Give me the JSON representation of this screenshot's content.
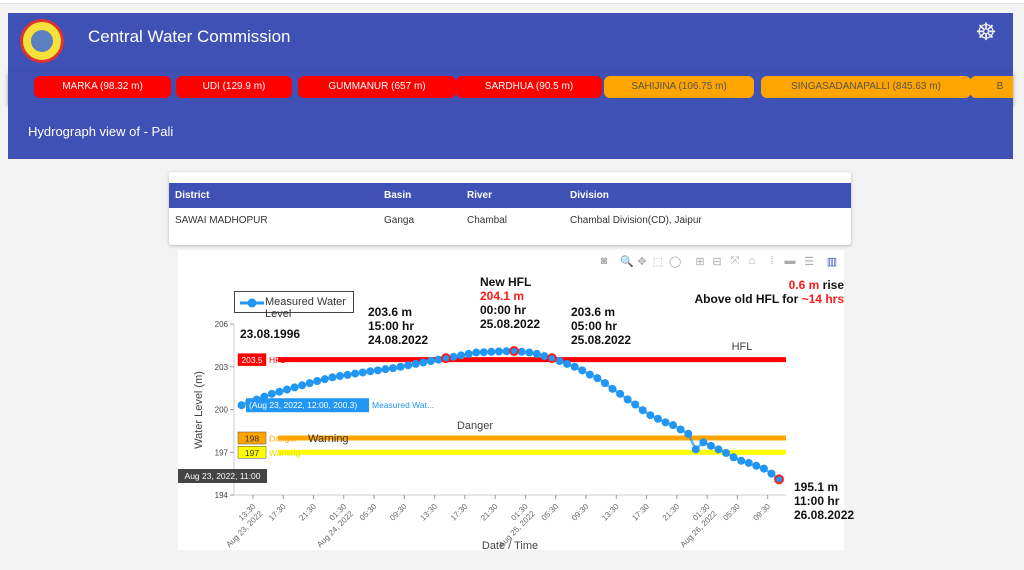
{
  "header": {
    "title": "Central Water Commission",
    "logo": "cwc-logo",
    "emblem": "india-emblem-icon"
  },
  "ticker": [
    {
      "label": "MARKA (98.32 m)",
      "status": "red"
    },
    {
      "label": "UDI (129.9 m)",
      "status": "red"
    },
    {
      "label": "GUMMANUR (657 m)",
      "status": "red"
    },
    {
      "label": "SARDHUA (90.5 m)",
      "status": "red"
    },
    {
      "label": "SAHIJINA (106.75 m)",
      "status": "orange"
    },
    {
      "label": "SINGASADANAPALLI (845.63 m)",
      "status": "orange"
    },
    {
      "label": "B",
      "status": "orange"
    }
  ],
  "subheader": {
    "title": "Hydrograph view of - Pali"
  },
  "table": {
    "headers": [
      "District",
      "Basin",
      "River",
      "Division"
    ],
    "row": [
      "SAWAI MADHOPUR",
      "Ganga",
      "Chambal",
      "Chambal Division(CD), Jaipur"
    ]
  },
  "toolbar": [
    "camera-icon",
    "zoom-icon",
    "pan-icon",
    "box-select-icon",
    "lasso-icon",
    "zoom-in-icon",
    "zoom-out-icon",
    "autoscale-icon",
    "reset-axes-icon",
    "spike-lines-icon",
    "hover-closest-icon",
    "hover-compare-icon",
    "plotly-logo-icon"
  ],
  "colors": {
    "primary": "#3f51b5",
    "red": "#ff0000",
    "orange": "#ffa500",
    "yellow": "#ffff00",
    "series": "#2196f3"
  },
  "annotations": {
    "hfl_date": "23.08.1996",
    "a1": [
      "203.6 m",
      "15:00 hr",
      "24.08.2022"
    ],
    "a2_title": "New HFL",
    "a2_value": "204.1 m",
    "a2": [
      "00:00 hr",
      "25.08.2022"
    ],
    "a3": [
      "203.6 m",
      "05:00 hr",
      "25.08.2022"
    ],
    "rise_value": "0.6 m",
    "rise_text": " rise",
    "above_text": "Above old HFL for ",
    "above_value": "~14 hrs",
    "a4": [
      "195.1 m",
      "11:00 hr",
      "26.08.2022"
    ]
  },
  "hover": {
    "x_label": "Aug 23, 2022, 11:00",
    "point_label": "(Aug 23, 2022, 12:00, 200.3)",
    "series_label": "Measured Wat..."
  },
  "chart_data": {
    "type": "line",
    "xlabel": "Date / Time",
    "ylabel": "Water Level (m)",
    "xlim": [
      "2022-08-23 11:00",
      "2022-08-26 12:00"
    ],
    "ylim": [
      194,
      206
    ],
    "yticks": [
      194,
      197,
      200,
      203,
      206
    ],
    "xticks": [
      {
        "t": "2022-08-23 13:30",
        "label": "13:30",
        "date": "Aug 23, 2022"
      },
      {
        "t": "2022-08-23 17:30",
        "label": "17:30"
      },
      {
        "t": "2022-08-23 21:30",
        "label": "21:30"
      },
      {
        "t": "2022-08-24 01:30",
        "label": "01:30",
        "date": "Aug 24, 2022"
      },
      {
        "t": "2022-08-24 05:30",
        "label": "05:30"
      },
      {
        "t": "2022-08-24 09:30",
        "label": "09:30"
      },
      {
        "t": "2022-08-24 13:30",
        "label": "13:30"
      },
      {
        "t": "2022-08-24 17:30",
        "label": "17:30"
      },
      {
        "t": "2022-08-24 21:30",
        "label": "21:30"
      },
      {
        "t": "2022-08-25 01:30",
        "label": "01:30",
        "date": "Aug 25, 2022"
      },
      {
        "t": "2022-08-25 05:30",
        "label": "05:30"
      },
      {
        "t": "2022-08-25 09:30",
        "label": "09:30"
      },
      {
        "t": "2022-08-25 13:30",
        "label": "13:30"
      },
      {
        "t": "2022-08-25 17:30",
        "label": "17:30"
      },
      {
        "t": "2022-08-25 21:30",
        "label": "21:30"
      },
      {
        "t": "2022-08-26 01:30",
        "label": "01:30",
        "date": "Aug 26, 2022"
      },
      {
        "t": "2022-08-26 05:30",
        "label": "05:30"
      },
      {
        "t": "2022-08-26 09:30",
        "label": "09:30"
      }
    ],
    "grid": false,
    "legend_position": "top-left",
    "levels": [
      {
        "name": "HFL",
        "value": 203.5,
        "color": "#ff0000",
        "label": "HFL",
        "tag": "203.5"
      },
      {
        "name": "Danger",
        "value": 198,
        "color": "#ffa500",
        "label": "Danger",
        "tag": "198"
      },
      {
        "name": "Warning",
        "value": 197,
        "color": "#ffff00",
        "label": "Warning",
        "tag": "197"
      }
    ],
    "level_titles": {
      "hfl": "HFL",
      "danger": "Danger",
      "warning": "Warning"
    },
    "series": [
      {
        "name": "Measured Water Level",
        "color": "#2196f3",
        "points": [
          [
            "2022-08-23 12:00",
            200.3
          ],
          [
            "2022-08-23 13:00",
            200.5
          ],
          [
            "2022-08-23 14:00",
            200.7
          ],
          [
            "2022-08-23 15:00",
            200.9
          ],
          [
            "2022-08-23 16:00",
            201.1
          ],
          [
            "2022-08-23 17:00",
            201.25
          ],
          [
            "2022-08-23 18:00",
            201.4
          ],
          [
            "2022-08-23 19:00",
            201.55
          ],
          [
            "2022-08-23 20:00",
            201.7
          ],
          [
            "2022-08-23 21:00",
            201.85
          ],
          [
            "2022-08-23 22:00",
            202.0
          ],
          [
            "2022-08-23 23:00",
            202.13
          ],
          [
            "2022-08-24 00:00",
            202.26
          ],
          [
            "2022-08-24 01:00",
            202.35
          ],
          [
            "2022-08-24 02:00",
            202.43
          ],
          [
            "2022-08-24 03:00",
            202.52
          ],
          [
            "2022-08-24 04:00",
            202.6
          ],
          [
            "2022-08-24 05:00",
            202.68
          ],
          [
            "2022-08-24 06:00",
            202.75
          ],
          [
            "2022-08-24 07:00",
            202.83
          ],
          [
            "2022-08-24 08:00",
            202.9
          ],
          [
            "2022-08-24 09:00",
            203.0
          ],
          [
            "2022-08-24 10:00",
            203.1
          ],
          [
            "2022-08-24 11:00",
            203.2
          ],
          [
            "2022-08-24 12:00",
            203.3
          ],
          [
            "2022-08-24 13:00",
            203.4
          ],
          [
            "2022-08-24 14:00",
            203.5
          ],
          [
            "2022-08-24 15:00",
            203.6
          ],
          [
            "2022-08-24 16:00",
            203.7
          ],
          [
            "2022-08-24 17:00",
            203.8
          ],
          [
            "2022-08-24 18:00",
            203.9
          ],
          [
            "2022-08-24 19:00",
            204.0
          ],
          [
            "2022-08-24 20:00",
            204.02
          ],
          [
            "2022-08-24 21:00",
            204.05
          ],
          [
            "2022-08-24 22:00",
            204.07
          ],
          [
            "2022-08-24 23:00",
            204.09
          ],
          [
            "2022-08-25 00:00",
            204.1
          ],
          [
            "2022-08-25 01:00",
            204.05
          ],
          [
            "2022-08-25 02:00",
            204.0
          ],
          [
            "2022-08-25 03:00",
            203.9
          ],
          [
            "2022-08-25 04:00",
            203.75
          ],
          [
            "2022-08-25 05:00",
            203.6
          ],
          [
            "2022-08-25 06:00",
            203.4
          ],
          [
            "2022-08-25 07:00",
            203.2
          ],
          [
            "2022-08-25 08:00",
            203.0
          ],
          [
            "2022-08-25 09:00",
            202.75
          ],
          [
            "2022-08-25 10:00",
            202.45
          ],
          [
            "2022-08-25 11:00",
            202.2
          ],
          [
            "2022-08-25 12:00",
            201.85
          ],
          [
            "2022-08-25 13:00",
            201.45
          ],
          [
            "2022-08-25 14:00",
            201.1
          ],
          [
            "2022-08-25 15:00",
            200.7
          ],
          [
            "2022-08-25 16:00",
            200.35
          ],
          [
            "2022-08-25 17:00",
            199.95
          ],
          [
            "2022-08-25 18:00",
            199.6
          ],
          [
            "2022-08-25 19:00",
            199.35
          ],
          [
            "2022-08-25 20:00",
            199.1
          ],
          [
            "2022-08-25 21:00",
            198.9
          ],
          [
            "2022-08-25 22:00",
            198.6
          ],
          [
            "2022-08-25 23:00",
            198.3
          ],
          [
            "2022-08-26 00:00",
            197.2
          ],
          [
            "2022-08-26 01:00",
            197.7
          ],
          [
            "2022-08-26 02:00",
            197.45
          ],
          [
            "2022-08-26 03:00",
            197.2
          ],
          [
            "2022-08-26 04:00",
            196.95
          ],
          [
            "2022-08-26 05:00",
            196.65
          ],
          [
            "2022-08-26 06:00",
            196.4
          ],
          [
            "2022-08-26 07:00",
            196.25
          ],
          [
            "2022-08-26 08:00",
            196.05
          ],
          [
            "2022-08-26 09:00",
            195.85
          ],
          [
            "2022-08-26 10:00",
            195.5
          ],
          [
            "2022-08-26 11:00",
            195.1
          ]
        ]
      }
    ],
    "highlighted": [
      "2022-08-24 15:00",
      "2022-08-25 00:00",
      "2022-08-25 05:00",
      "2022-08-26 11:00"
    ]
  }
}
